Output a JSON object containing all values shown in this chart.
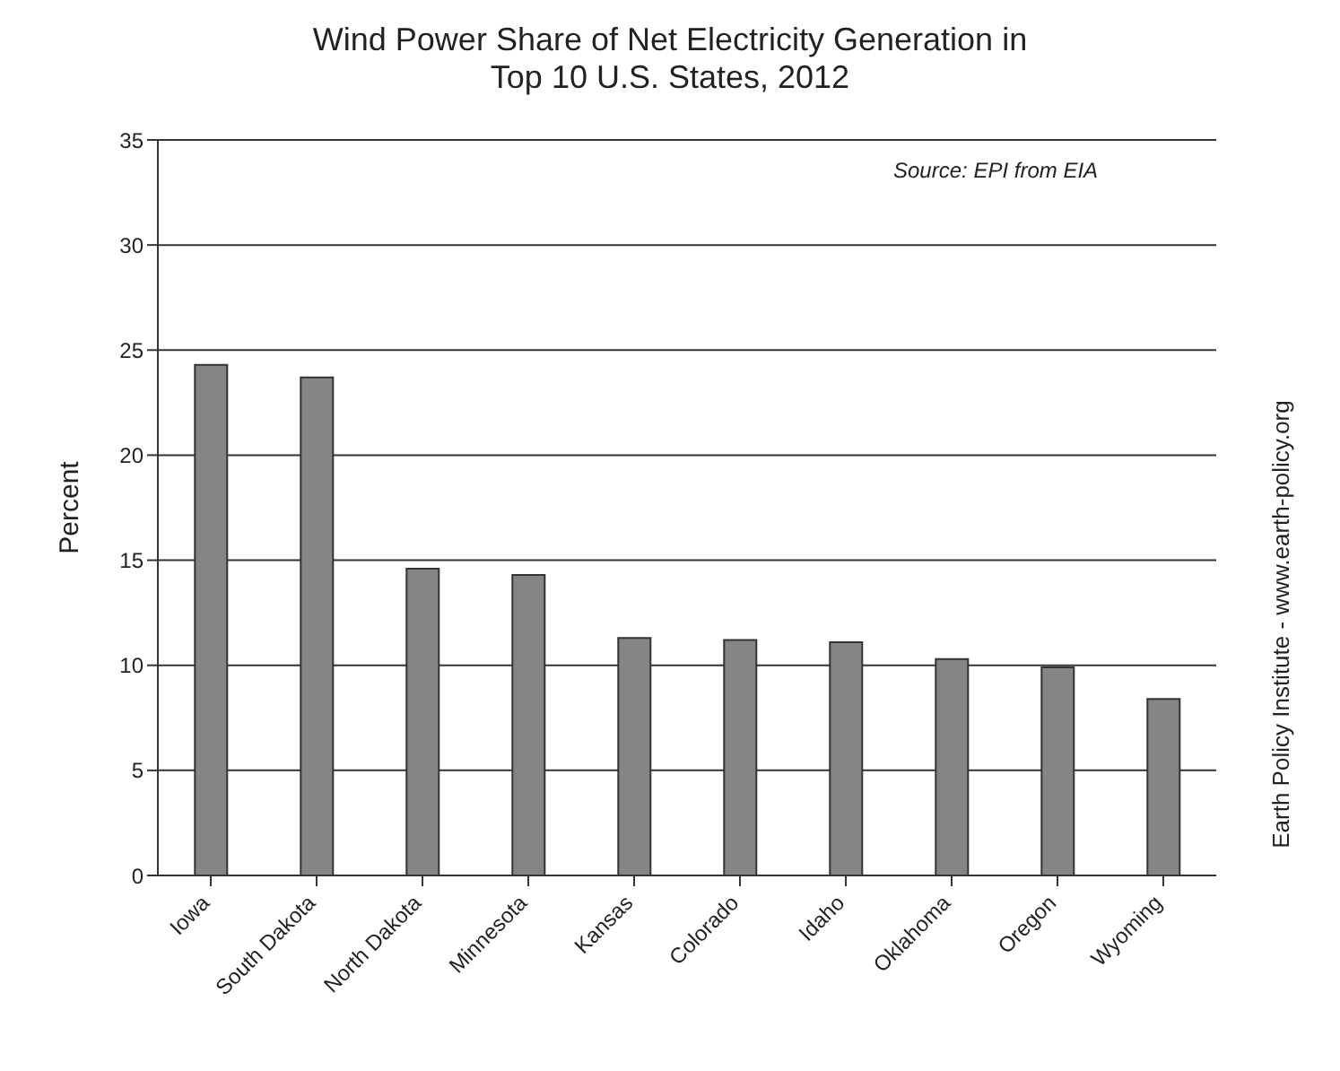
{
  "chart_data": {
    "type": "bar",
    "title": "Wind Power Share of Net Electricity Generation in\nTop 10 U.S. States, 2012",
    "ylabel": "Percent",
    "categories": [
      "Iowa",
      "South Dakota",
      "North Dakota",
      "Minnesota",
      "Kansas",
      "Colorado",
      "Idaho",
      "Oklahoma",
      "Oregon",
      "Wyoming"
    ],
    "values": [
      24.3,
      23.7,
      14.6,
      14.3,
      11.3,
      11.2,
      11.1,
      10.3,
      9.9,
      8.4
    ],
    "color": "#858585",
    "ylim": [
      0,
      35
    ],
    "yticks": [
      0,
      5,
      10,
      15,
      20,
      25,
      30,
      35
    ],
    "grid": "y",
    "annotations": [
      "Source: EPI from EIA",
      "Earth Policy Institute - www.earth-policy.org"
    ]
  }
}
